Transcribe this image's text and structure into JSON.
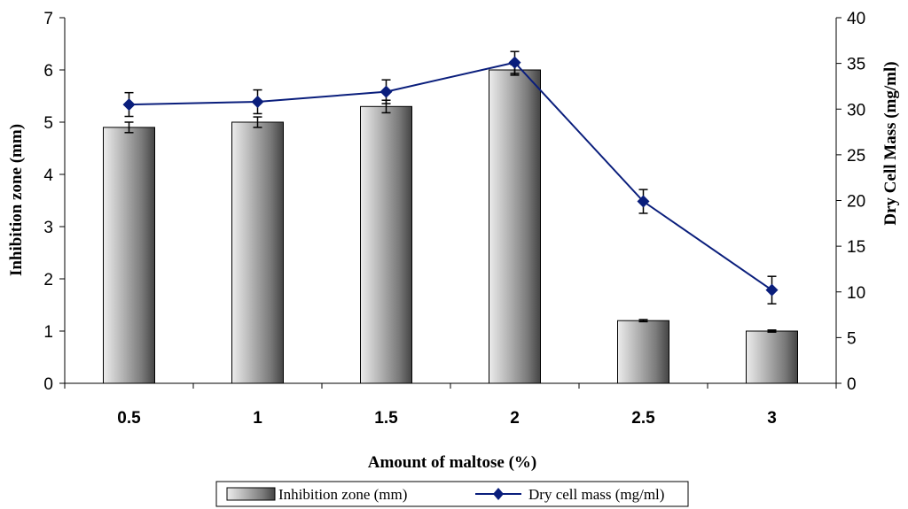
{
  "chart_data": {
    "type": "bar",
    "categories": [
      "0.5",
      "1",
      "1.5",
      "2",
      "2.5",
      "3"
    ],
    "xlabel": "Amount of maltose (%)",
    "ylabel": "Inhibition zone (mm)",
    "y2label": "Dry Cell Mass (mg/ml)",
    "ylim": [
      0,
      7
    ],
    "y2lim": [
      0,
      40
    ],
    "yticks": [
      "0",
      "1",
      "2",
      "3",
      "4",
      "5",
      "6",
      "7"
    ],
    "y2ticks": [
      "0",
      "5",
      "10",
      "15",
      "20",
      "25",
      "30",
      "35",
      "40"
    ],
    "grid": false,
    "legend_position": "bottom",
    "series": [
      {
        "name": "Inhibition zone (mm)",
        "type": "bar",
        "axis": "left",
        "values": [
          4.9,
          5.0,
          5.3,
          6.0,
          1.2,
          1.0
        ],
        "errors": [
          0.1,
          0.1,
          0.12,
          0.1,
          0.02,
          0.02
        ],
        "color": "#9a9a9a"
      },
      {
        "name": "Dry cell mass (mg/ml)",
        "type": "line",
        "axis": "right",
        "marker": "diamond",
        "values": [
          30.5,
          30.8,
          31.9,
          35.1,
          19.9,
          10.2
        ],
        "errors": [
          1.3,
          1.3,
          1.3,
          1.2,
          1.3,
          1.5
        ],
        "color": "#0a1e7c"
      }
    ]
  }
}
